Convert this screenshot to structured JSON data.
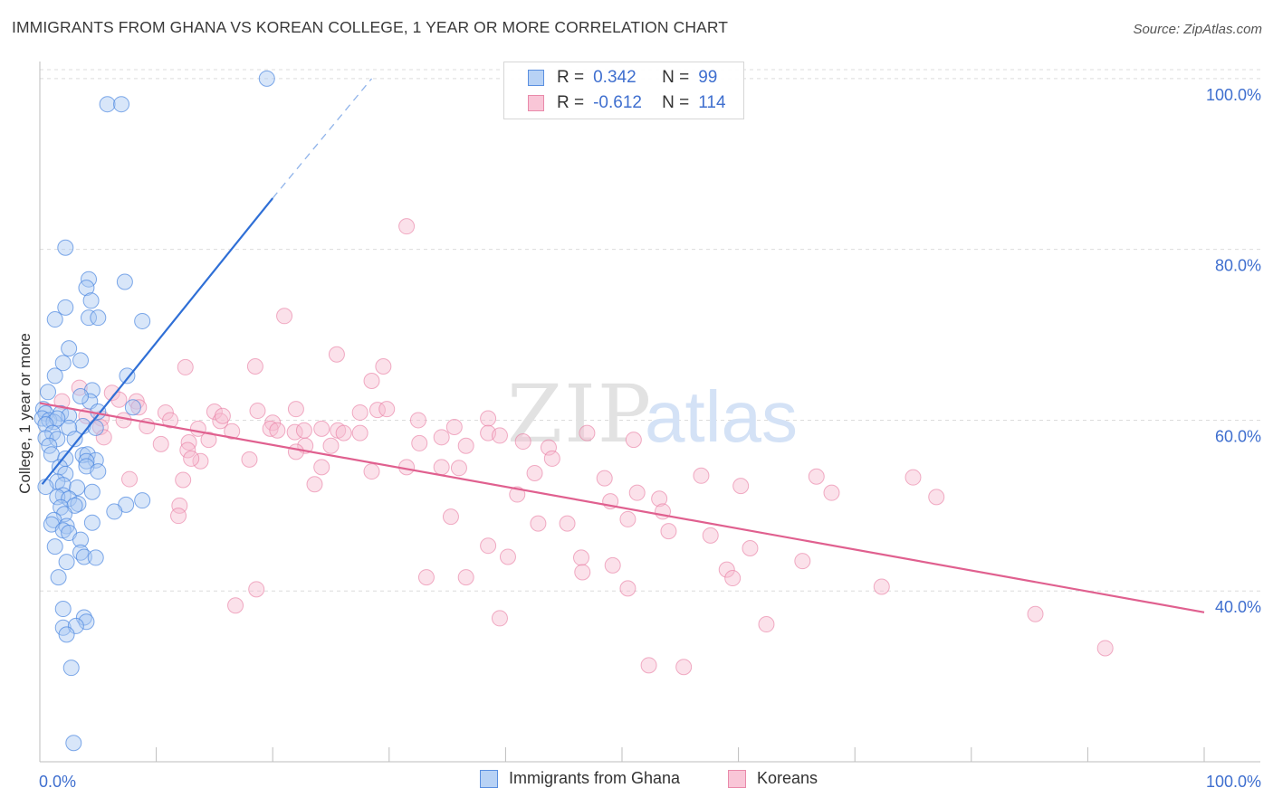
{
  "title": "IMMIGRANTS FROM GHANA VS KOREAN COLLEGE, 1 YEAR OR MORE CORRELATION CHART",
  "source": "Source: ZipAtlas.com",
  "watermark": {
    "zip": "ZIP",
    "atlas": "atlas"
  },
  "legend": {
    "ghana": {
      "r_label": "R =",
      "r_value": "0.342",
      "n_label": "N =",
      "n_value": "99"
    },
    "korean": {
      "r_label": "R =",
      "r_value": "-0.612",
      "n_label": "N =",
      "n_value": "114"
    }
  },
  "bottom_legend": {
    "ghana": "Immigrants from Ghana",
    "korean": "Koreans"
  },
  "colors": {
    "ghana_fill": "#a9c8f2",
    "ghana_stroke": "#4a86e0",
    "ghana_line": "#2f6fd6",
    "korean_fill": "#f7bcd0",
    "korean_stroke": "#e87aa0",
    "korean_line": "#e0608f",
    "axis_label": "#3f6fcf",
    "grid": "#dcdcdc"
  },
  "chart_data": {
    "type": "scatter",
    "title": "IMMIGRANTS FROM GHANA VS KOREAN COLLEGE, 1 YEAR OR MORE CORRELATION CHART",
    "xlabel": "",
    "ylabel": "College, 1 year or more",
    "xlim": [
      0,
      100
    ],
    "ylim": [
      20,
      102
    ],
    "x_tick_labels": [
      "0.0%",
      "100.0%"
    ],
    "y_ticks": [
      40,
      60,
      80,
      100
    ],
    "y_tick_labels": [
      "40.0%",
      "60.0%",
      "80.0%",
      "100.0%"
    ],
    "grid": true,
    "series": [
      {
        "name": "Immigrants from Ghana",
        "r": 0.342,
        "n": 99,
        "trend": {
          "x0": 0.2,
          "y0": 52.5,
          "x1": 20,
          "y1": 86,
          "dash_x1": 28.5,
          "dash_y1": 100
        },
        "points": [
          [
            19.5,
            100
          ],
          [
            5.8,
            97
          ],
          [
            7,
            97
          ],
          [
            2.2,
            80.2
          ],
          [
            4.2,
            76.5
          ],
          [
            7.3,
            76.2
          ],
          [
            4,
            75.5
          ],
          [
            4.4,
            74
          ],
          [
            2.2,
            73.2
          ],
          [
            4.2,
            72
          ],
          [
            5,
            72
          ],
          [
            1.3,
            71.8
          ],
          [
            8.8,
            71.6
          ],
          [
            2.5,
            68.4
          ],
          [
            3.5,
            67
          ],
          [
            2,
            66.7
          ],
          [
            1.3,
            65.2
          ],
          [
            7.5,
            65.2
          ],
          [
            0.7,
            63.3
          ],
          [
            4.5,
            63.5
          ],
          [
            4.3,
            62.2
          ],
          [
            3.5,
            62.8
          ],
          [
            8,
            61.5
          ],
          [
            0.3,
            61.3
          ],
          [
            0.5,
            60.8
          ],
          [
            1.8,
            60.8
          ],
          [
            2.5,
            60.5
          ],
          [
            5,
            61
          ],
          [
            0.2,
            60.2
          ],
          [
            0.8,
            60
          ],
          [
            1.2,
            59.8
          ],
          [
            1.5,
            60.2
          ],
          [
            3.7,
            59.3
          ],
          [
            2.5,
            59.1
          ],
          [
            4.8,
            59.1
          ],
          [
            0.5,
            59.5
          ],
          [
            1.1,
            58.5
          ],
          [
            0.5,
            57.9
          ],
          [
            1.5,
            57.8
          ],
          [
            3,
            57.8
          ],
          [
            0.8,
            57
          ],
          [
            3.7,
            55.9
          ],
          [
            1,
            56
          ],
          [
            2.2,
            55.5
          ],
          [
            4.1,
            56
          ],
          [
            4.8,
            55.3
          ],
          [
            4,
            55.2
          ],
          [
            1.7,
            54.5
          ],
          [
            4,
            54.6
          ],
          [
            5,
            54
          ],
          [
            2.2,
            53.7
          ],
          [
            1.5,
            52.8
          ],
          [
            2,
            52.4
          ],
          [
            3.2,
            52.1
          ],
          [
            0.5,
            52.2
          ],
          [
            4.5,
            51.6
          ],
          [
            2,
            51.2
          ],
          [
            1.5,
            51
          ],
          [
            2.5,
            50.8
          ],
          [
            3.3,
            50.2
          ],
          [
            1.8,
            49.8
          ],
          [
            3,
            50
          ],
          [
            7.4,
            50.1
          ],
          [
            8.8,
            50.6
          ],
          [
            6.4,
            49.3
          ],
          [
            2.1,
            49
          ],
          [
            1.2,
            48.3
          ],
          [
            4.5,
            48
          ],
          [
            1,
            47.8
          ],
          [
            2.3,
            47.6
          ],
          [
            2,
            47.1
          ],
          [
            2.5,
            46.8
          ],
          [
            3.5,
            46
          ],
          [
            1.3,
            45.2
          ],
          [
            3.5,
            44.5
          ],
          [
            3.8,
            44
          ],
          [
            4.8,
            43.9
          ],
          [
            2.3,
            43.4
          ],
          [
            1.6,
            41.6
          ],
          [
            2,
            37.9
          ],
          [
            3.8,
            36.9
          ],
          [
            4,
            36.4
          ],
          [
            2,
            35.7
          ],
          [
            3.1,
            35.9
          ],
          [
            2.3,
            34.9
          ],
          [
            2.7,
            31
          ],
          [
            2.9,
            22.2
          ]
        ]
      },
      {
        "name": "Koreans",
        "r": -0.612,
        "n": 114,
        "trend": {
          "x0": 0,
          "y0": 62,
          "x1": 100,
          "y1": 37.5
        },
        "points": [
          [
            31.5,
            82.7
          ],
          [
            21,
            72.2
          ],
          [
            25.5,
            67.7
          ],
          [
            12.5,
            66.2
          ],
          [
            18.5,
            66.3
          ],
          [
            29.5,
            66.3
          ],
          [
            28.5,
            64.6
          ],
          [
            3.4,
            63.8
          ],
          [
            6.2,
            63.2
          ],
          [
            6.8,
            62.4
          ],
          [
            8.3,
            62.2
          ],
          [
            1.9,
            62.2
          ],
          [
            15,
            61
          ],
          [
            18.7,
            61.1
          ],
          [
            22,
            61.3
          ],
          [
            27.5,
            60.9
          ],
          [
            29,
            61.2
          ],
          [
            29.8,
            61.3
          ],
          [
            10.8,
            60.9
          ],
          [
            11.2,
            60
          ],
          [
            5.3,
            60.2
          ],
          [
            5.2,
            59.2
          ],
          [
            9.2,
            59.3
          ],
          [
            13.6,
            59
          ],
          [
            15.5,
            59.9
          ],
          [
            16.5,
            58.7
          ],
          [
            15.7,
            60.5
          ],
          [
            20,
            59.7
          ],
          [
            19.8,
            59
          ],
          [
            20.4,
            58.8
          ],
          [
            21.9,
            58.6
          ],
          [
            22.7,
            58.8
          ],
          [
            24.2,
            59
          ],
          [
            25.6,
            58.8
          ],
          [
            26.1,
            58.5
          ],
          [
            27.5,
            58.5
          ],
          [
            32.5,
            60
          ],
          [
            35.6,
            59.2
          ],
          [
            38.5,
            60.2
          ],
          [
            38.5,
            58.5
          ],
          [
            39.5,
            58.2
          ],
          [
            41.5,
            57.5
          ],
          [
            34.5,
            58
          ],
          [
            36.6,
            57
          ],
          [
            32.6,
            57.3
          ],
          [
            47,
            58.5
          ],
          [
            43.7,
            56.8
          ],
          [
            44,
            55.5
          ],
          [
            51,
            57.7
          ],
          [
            25,
            57
          ],
          [
            22.8,
            57
          ],
          [
            22,
            56.3
          ],
          [
            10.4,
            57.2
          ],
          [
            12.8,
            57.4
          ],
          [
            12.7,
            56.5
          ],
          [
            13.8,
            55.2
          ],
          [
            18,
            55.4
          ],
          [
            24.2,
            54.5
          ],
          [
            28.5,
            54
          ],
          [
            31.5,
            54.5
          ],
          [
            34.5,
            54.5
          ],
          [
            36,
            54.4
          ],
          [
            42.5,
            53.8
          ],
          [
            48.5,
            53.2
          ],
          [
            56.8,
            53.5
          ],
          [
            60.2,
            52.3
          ],
          [
            66.7,
            53.4
          ],
          [
            7.7,
            53.1
          ],
          [
            12.3,
            53
          ],
          [
            23.6,
            52.5
          ],
          [
            41,
            51.3
          ],
          [
            51.3,
            51.5
          ],
          [
            53.2,
            50.8
          ],
          [
            68,
            51.5
          ],
          [
            75,
            53.3
          ],
          [
            77,
            51
          ],
          [
            49,
            50.5
          ],
          [
            12,
            50
          ],
          [
            11.9,
            48.8
          ],
          [
            35.3,
            48.7
          ],
          [
            42.8,
            47.9
          ],
          [
            45.3,
            47.9
          ],
          [
            50.5,
            48.4
          ],
          [
            53.5,
            49.3
          ],
          [
            54,
            47
          ],
          [
            57.6,
            46.5
          ],
          [
            38.5,
            45.3
          ],
          [
            40.2,
            44
          ],
          [
            46.5,
            43.9
          ],
          [
            61,
            45
          ],
          [
            65.5,
            43.5
          ],
          [
            49.2,
            43
          ],
          [
            46.6,
            42.2
          ],
          [
            59,
            42.5
          ],
          [
            59.5,
            41.5
          ],
          [
            33.2,
            41.6
          ],
          [
            36.6,
            41.6
          ],
          [
            50.5,
            40.3
          ],
          [
            18.6,
            40.2
          ],
          [
            72.3,
            40.5
          ],
          [
            16.8,
            38.3
          ],
          [
            39.5,
            36.8
          ],
          [
            62.4,
            36.1
          ],
          [
            85.5,
            37.3
          ],
          [
            91.5,
            33.3
          ],
          [
            55.3,
            31.1
          ],
          [
            52.3,
            31.3
          ],
          [
            13,
            55.5
          ],
          [
            8.5,
            61.5
          ],
          [
            14.5,
            57.7
          ],
          [
            5.5,
            58
          ],
          [
            4,
            60.5
          ],
          [
            7.2,
            60
          ]
        ]
      }
    ]
  }
}
